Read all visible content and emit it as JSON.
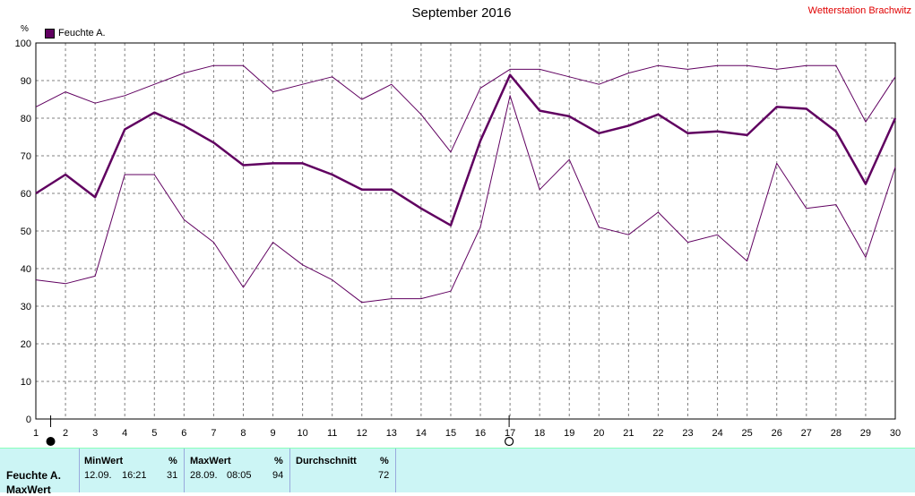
{
  "header": {
    "title": "September 2016",
    "station": "Wetterstation Brachwitz",
    "unit": "%",
    "legend": "Feuchte A."
  },
  "colors": {
    "line": "#600060",
    "grid": "#808080",
    "panel": "#ccf5f5",
    "station_text": "#e00000"
  },
  "chart_data": {
    "type": "line",
    "title": "September 2016",
    "ylabel": "%",
    "ylim": [
      0,
      100
    ],
    "yticks": [
      0,
      10,
      20,
      30,
      40,
      50,
      60,
      70,
      80,
      90,
      100
    ],
    "x": [
      1,
      2,
      3,
      4,
      5,
      6,
      7,
      8,
      9,
      10,
      11,
      12,
      13,
      14,
      15,
      16,
      17,
      18,
      19,
      20,
      21,
      22,
      23,
      24,
      25,
      26,
      27,
      28,
      29,
      30
    ],
    "grid": true,
    "markers": [
      {
        "day": 1.5,
        "symbol": "full-moon"
      },
      {
        "day": 16.97,
        "symbol": "new-moon"
      }
    ],
    "series": [
      {
        "name": "Feuchte A.",
        "role": "max",
        "values": [
          83,
          87,
          84,
          86,
          89,
          92,
          94,
          94,
          87,
          89,
          91,
          85,
          89,
          81,
          71,
          88,
          93,
          93,
          91,
          89,
          92,
          94,
          93,
          94,
          94,
          93,
          94,
          94,
          79,
          91
        ]
      },
      {
        "name": "Feuchte A.",
        "role": "mean",
        "values": [
          60,
          65,
          59,
          77,
          81.5,
          78,
          73.5,
          67.5,
          68,
          68,
          65,
          61,
          61,
          56,
          51.5,
          74,
          91.5,
          82,
          80.5,
          76,
          78,
          81,
          76,
          76.5,
          75.5,
          83,
          82.5,
          76.5,
          62.5,
          80
        ]
      },
      {
        "name": "Feuchte A.",
        "role": "min",
        "values": [
          37,
          36,
          38,
          65,
          65,
          53,
          47,
          35,
          47,
          41,
          37,
          31,
          32,
          32,
          34,
          51,
          86,
          61,
          69,
          51,
          49,
          55,
          47,
          49,
          42,
          68,
          56,
          57,
          43,
          67
        ]
      }
    ]
  },
  "panel": {
    "row_label": "Feuchte A.",
    "row_label2": "MaxWert",
    "min": {
      "header": "MinWert",
      "unit": "%",
      "date": "12.09.",
      "time": "16:21",
      "value": "31"
    },
    "max": {
      "header": "MaxWert",
      "unit": "%",
      "date": "28.09.",
      "time": "08:05",
      "value": "94"
    },
    "avg": {
      "header": "Durchschnitt",
      "unit": "%",
      "value": "72"
    }
  }
}
